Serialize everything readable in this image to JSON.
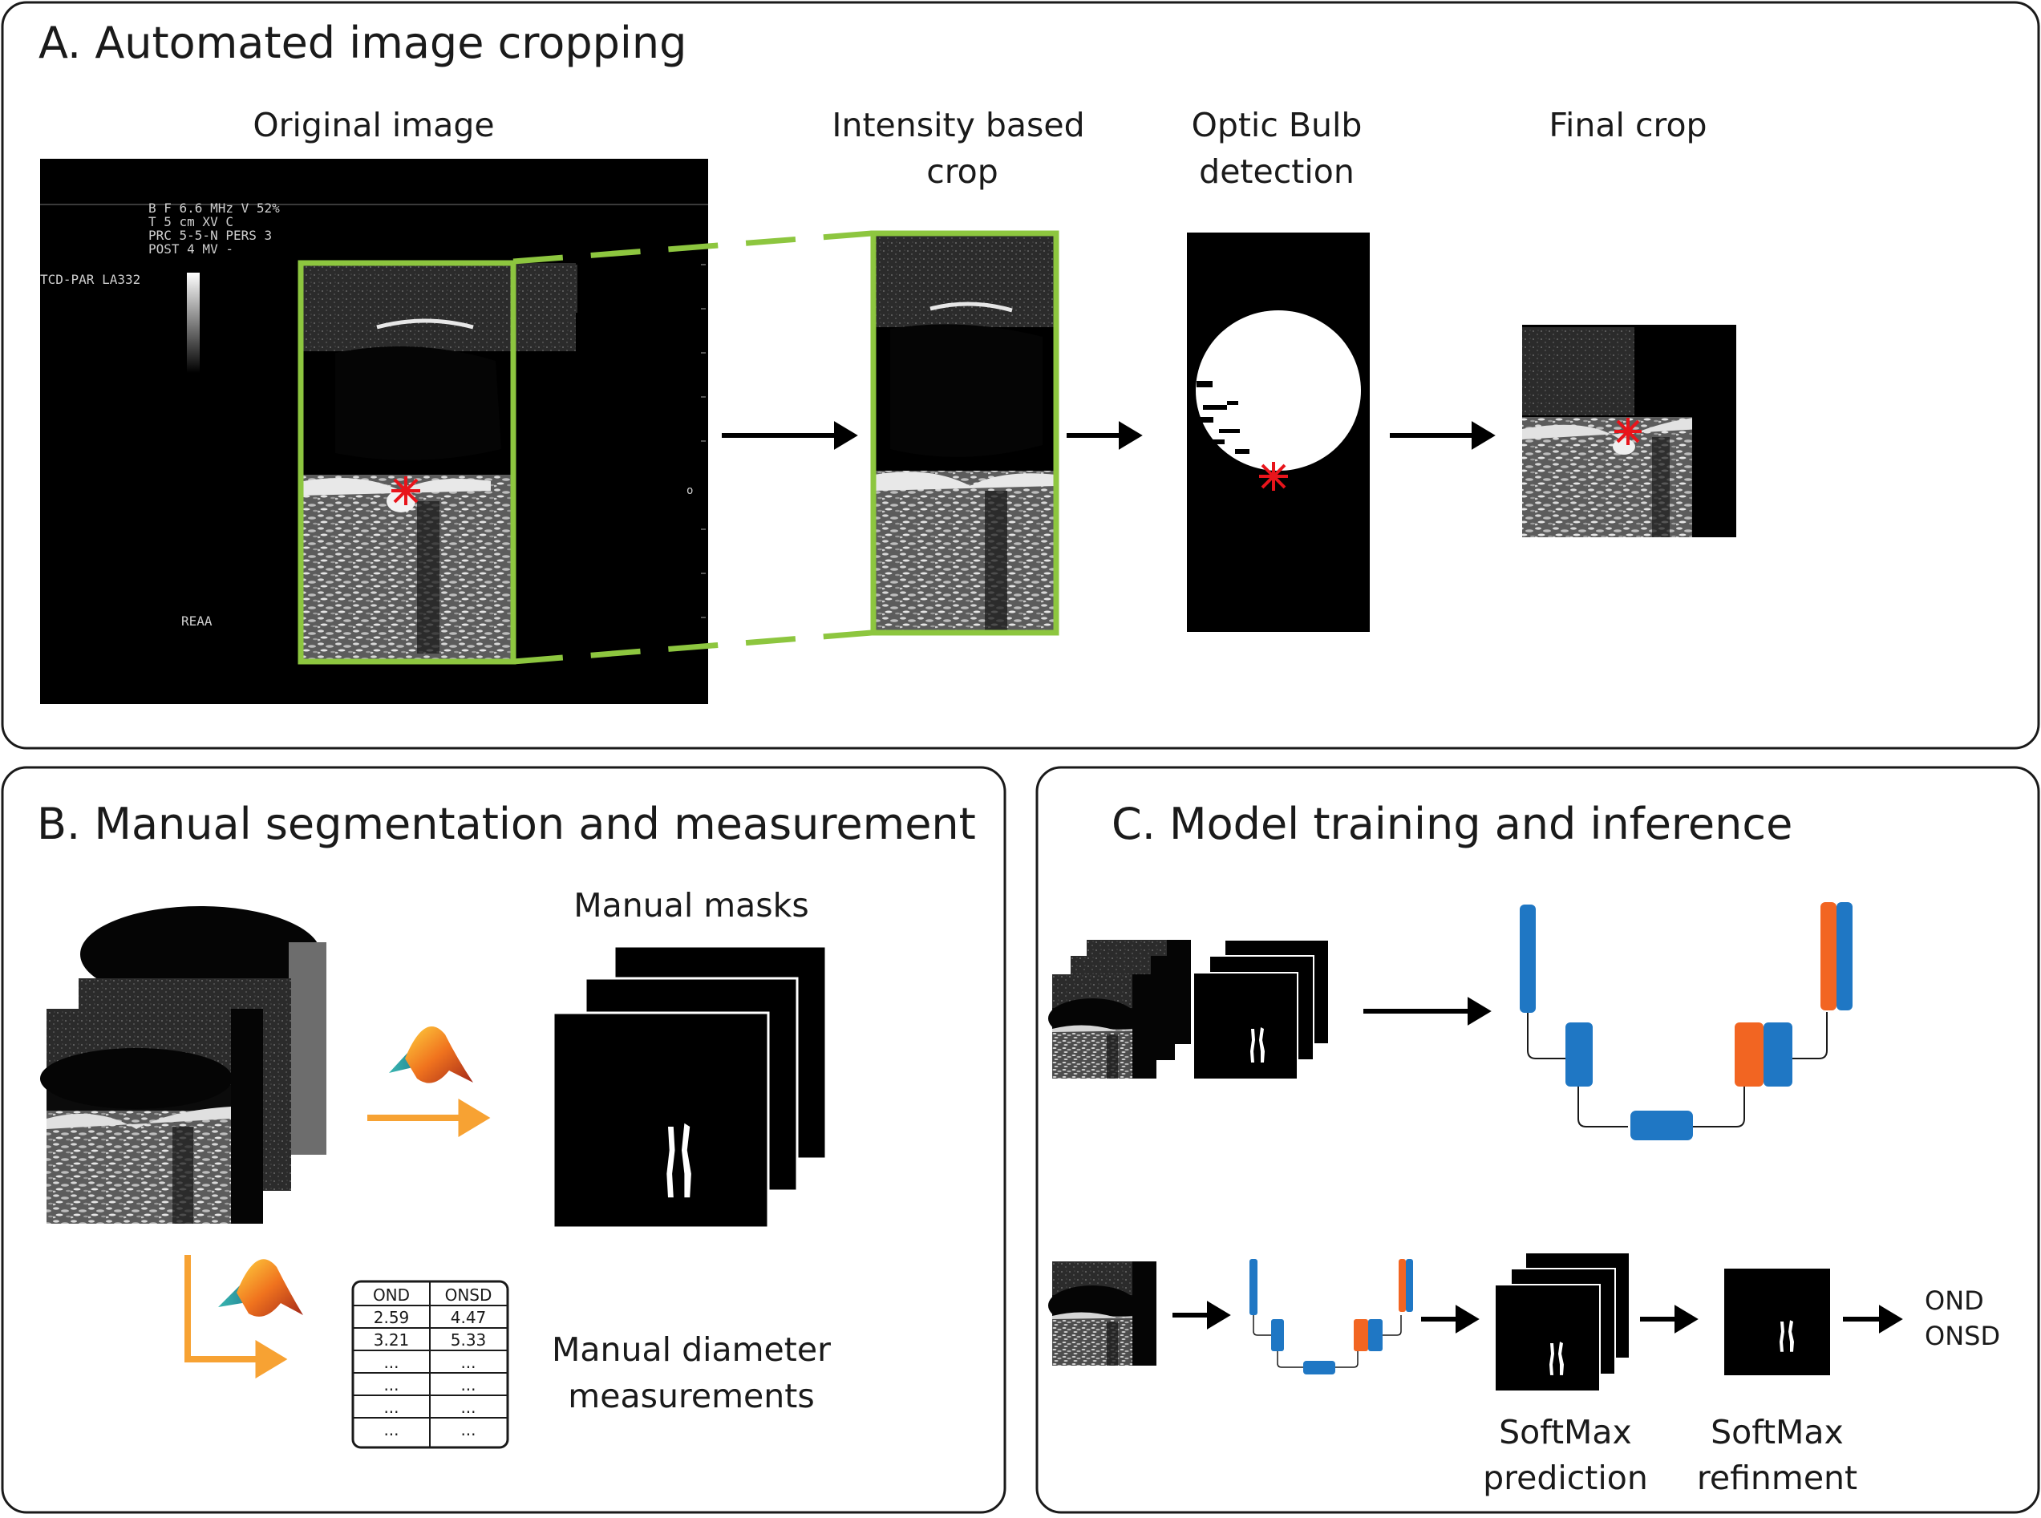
{
  "panel_a": {
    "title": "A. Automated image cropping",
    "labels": {
      "original": "Original image",
      "intensity_line1": "Intensity based",
      "intensity_line2": "crop",
      "optic_line1": "Optic Bulb",
      "optic_line2": "detection",
      "final": "Final crop"
    },
    "us_overlay": {
      "row1": "B F   6.6 MHz V  52%",
      "row2": "T     5  cm  XV  C",
      "row3": "PRC  5-5-N  PERS  3",
      "row4": "POST 4      MV   -",
      "probe": "TCD-PAR  LA332",
      "reaa": "REAA",
      "marker": "o"
    }
  },
  "panel_b": {
    "title": "B. Manual segmentation and measurement",
    "manual_masks": "Manual masks",
    "measurements_line1": "Manual diameter",
    "measurements_line2": "measurements",
    "table": {
      "headers": [
        "OND",
        "ONSD"
      ],
      "rows": [
        [
          "2.59",
          "4.47"
        ],
        [
          "3.21",
          "5.33"
        ],
        [
          "...",
          "..."
        ],
        [
          "...",
          "..."
        ],
        [
          "...",
          "..."
        ],
        [
          "...",
          "..."
        ]
      ]
    }
  },
  "panel_c": {
    "title": "C. Model training and inference",
    "softmax_pred_line1": "SoftMax",
    "softmax_pred_line2": "prediction",
    "softmax_ref_line1": "SoftMax",
    "softmax_ref_line2": "refinment",
    "output_line1": "OND",
    "output_line2": "ONSD"
  },
  "colors": {
    "green": "#8dc63f",
    "blue": "#1f77c4",
    "orange": "#f26522",
    "arrow_orange": "#f7a233",
    "red": "#e8141b"
  }
}
